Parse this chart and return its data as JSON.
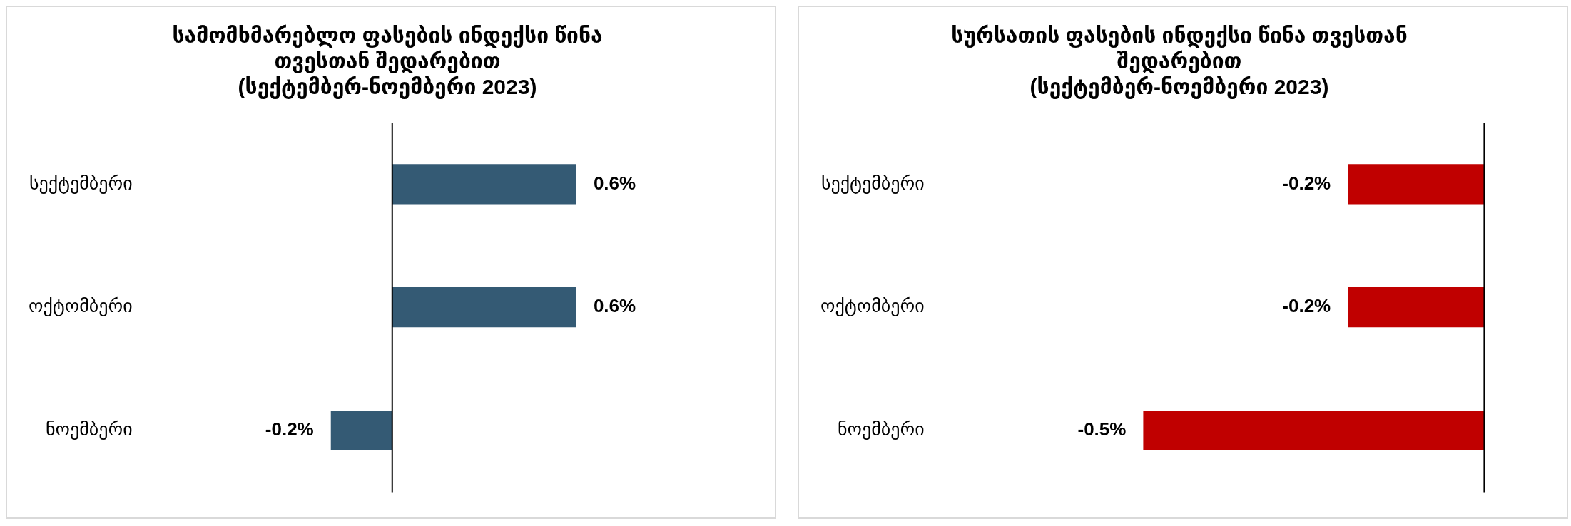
{
  "chart_data": [
    {
      "type": "bar",
      "orientation": "horizontal",
      "title": "სამომხმარებლო ფასების ინდექსი წინა\nთვესთან შედარებით\n(სექტემბერ-ნოემბერი 2023)",
      "categories": [
        "სექტემბერი",
        "ოქტომბერი",
        "ნოემბერი"
      ],
      "values": [
        0.6,
        0.6,
        -0.2
      ],
      "value_labels": [
        "0.6%",
        "0.6%",
        "-0.2%"
      ],
      "color": "#345a74",
      "tick_labels": "y",
      "grid": false
    },
    {
      "type": "bar",
      "orientation": "horizontal",
      "title": "სურსათის ფასების ინდექსი წინა თვესთან\nშედარებით\n(სექტემბერ-ნოემბერი 2023)",
      "categories": [
        "სექტემბერი",
        "ოქტომბერი",
        "ნოემბერი"
      ],
      "values": [
        -0.2,
        -0.2,
        -0.5
      ],
      "value_labels": [
        "-0.2%",
        "-0.2%",
        "-0.5%"
      ],
      "color": "#c00000",
      "tick_labels": "y",
      "grid": false
    }
  ]
}
